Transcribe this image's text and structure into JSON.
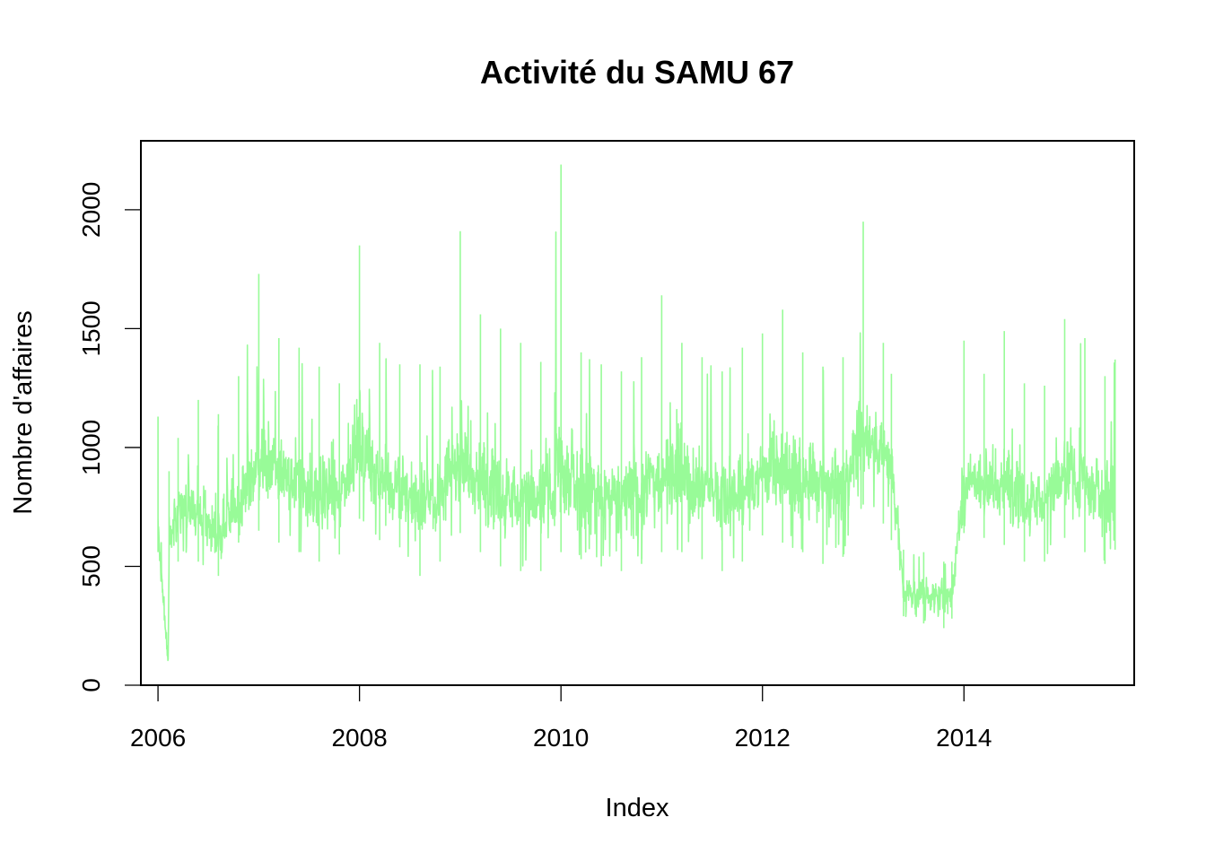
{
  "chart_data": {
    "type": "line",
    "title": "Activité du SAMU 67",
    "xlabel": "Index",
    "ylabel": "Nombre d'affaires",
    "x_unit": "year",
    "xlim": [
      2005.83,
      2015.69
    ],
    "ylim": [
      0,
      2290
    ],
    "x_ticks": [
      2006,
      2008,
      2010,
      2012,
      2014
    ],
    "x_tick_labels": [
      "2006",
      "2008",
      "2010",
      "2012",
      "2014"
    ],
    "y_ticks": [
      0,
      500,
      1000,
      1500,
      2000
    ],
    "y_tick_labels": [
      "0",
      "500",
      "1000",
      "1500",
      "2000"
    ],
    "grid": false,
    "legend": "none",
    "series": [
      {
        "color": "#98fb98",
        "x": [
          2006.0,
          2006.1,
          2006.11,
          2006.2,
          2006.4,
          2006.6,
          2006.8,
          2007.0,
          2007.2,
          2007.4,
          2007.6,
          2007.8,
          2008.0,
          2008.2,
          2008.4,
          2008.6,
          2008.8,
          2009.0,
          2009.2,
          2009.4,
          2009.6,
          2009.8,
          2010.0,
          2010.2,
          2010.4,
          2010.6,
          2010.8,
          2011.0,
          2011.2,
          2011.4,
          2011.6,
          2011.8,
          2012.0,
          2012.2,
          2012.4,
          2012.6,
          2012.8,
          2013.0,
          2013.2,
          2013.28,
          2013.4,
          2013.6,
          2013.8,
          2013.88,
          2014.0,
          2014.2,
          2014.4,
          2014.6,
          2014.8,
          2015.0,
          2015.2,
          2015.4,
          2015.5
        ],
        "values": [
          640,
          80,
          600,
          750,
          730,
          610,
          760,
          930,
          880,
          830,
          800,
          770,
          1000,
          870,
          820,
          760,
          790,
          950,
          840,
          810,
          790,
          790,
          830,
          840,
          790,
          780,
          810,
          910,
          850,
          820,
          800,
          830,
          900,
          880,
          860,
          830,
          860,
          1060,
          970,
          960,
          390,
          380,
          370,
          380,
          870,
          850,
          840,
          790,
          790,
          900,
          830,
          790,
          820
        ],
        "low": [
          560,
          80,
          540,
          520,
          520,
          460,
          600,
          650,
          600,
          560,
          520,
          550,
          700,
          610,
          580,
          460,
          520,
          640,
          560,
          500,
          480,
          480,
          560,
          530,
          500,
          480,
          510,
          560,
          560,
          530,
          480,
          520,
          630,
          600,
          560,
          510,
          540,
          760,
          680,
          610,
          290,
          260,
          240,
          280,
          640,
          620,
          590,
          520,
          520,
          620,
          560,
          510,
          570
        ],
        "high": [
          1130,
          80,
          900,
          1040,
          1200,
          1140,
          1300,
          1730,
          1460,
          1420,
          1340,
          1270,
          1850,
          1440,
          1350,
          1350,
          1340,
          1910,
          1560,
          1500,
          1440,
          1360,
          2190,
          1400,
          1350,
          1320,
          1380,
          1640,
          1440,
          1380,
          1320,
          1420,
          1480,
          1580,
          1400,
          1340,
          1380,
          1950,
          1440,
          1310,
          570,
          560,
          520,
          520,
          1450,
          1310,
          1490,
          1270,
          1260,
          1540,
          1460,
          1300,
          1370
        ]
      }
    ]
  }
}
